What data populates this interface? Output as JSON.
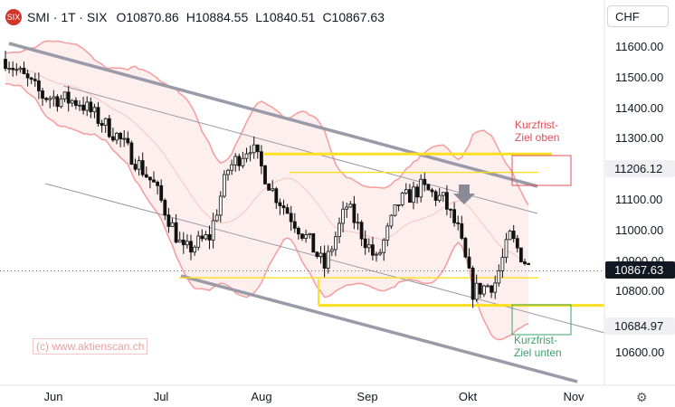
{
  "header": {
    "logo_text": "SIX",
    "symbol": "SMI · 1T · SIX",
    "open": "O10870.86",
    "high": "H10884.55",
    "low": "L10840.51",
    "close": "C10867.63"
  },
  "currency": "CHF",
  "colors": {
    "up": "#ffffff",
    "down": "#111111",
    "channel": "#9a9aa8",
    "yellow": "#ffe020",
    "bollinger": "#f5a0a0",
    "red": "#e0505a",
    "green": "#3aa36a"
  },
  "watermark": "(c) www.aktienscan.ch",
  "annotations": {
    "upper_target": [
      "Kurzfrist-",
      "Ziel oben"
    ],
    "lower_target": [
      "Kurzfrist-",
      "Ziel unten"
    ]
  },
  "chart_data": {
    "type": "candlestick",
    "x_axis": {
      "ticks": [
        "Jun",
        "Jul",
        "Aug",
        "Sep",
        "Okt",
        "Nov"
      ]
    },
    "y_axis": {
      "range": [
        10530,
        11680
      ],
      "ticks": [
        11600,
        11500,
        11400,
        11300,
        11200,
        11100,
        11000,
        10900,
        10800,
        10700,
        10600
      ]
    },
    "y_tick_labels": [
      "11600.00",
      "11500.00",
      "11400.00",
      "11300.00",
      "11200.00",
      "11100.00",
      "11000.00",
      "10900.00",
      "10800.00",
      "10700.00",
      "10600.00"
    ],
    "price_labels": {
      "last": {
        "value": 10867.63,
        "label": "10867.63"
      },
      "upper_target": {
        "value": 11206.12,
        "label": "11206.12"
      },
      "lower_target": {
        "value": 10684.97,
        "label": "10684.97"
      }
    },
    "horizontal_levels": [
      {
        "value": 11250,
        "style": "bold"
      },
      {
        "value": 11190,
        "style": "thin"
      },
      {
        "value": 10845,
        "style": "thin"
      },
      {
        "value": 10755,
        "style": "bold"
      }
    ],
    "last_price": 10867.63
  }
}
